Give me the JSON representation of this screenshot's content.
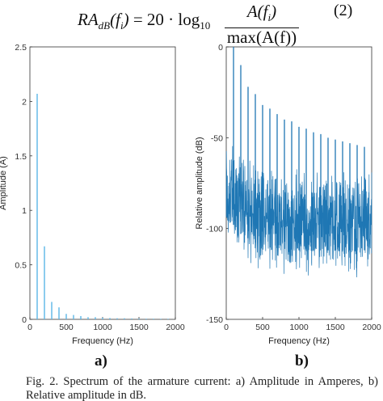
{
  "formula": {
    "lhs_main": "RA",
    "lhs_sub": "dB",
    "lhs_arg": "(f",
    "lhs_arg_sub": "i",
    "lhs_close": ")",
    "eq": "= 20 · log",
    "log_sub": "10",
    "numerator_main": "A(f",
    "numerator_sub": "i",
    "numerator_close": ")",
    "denominator": "max(A(f))",
    "number": "(2)"
  },
  "panel_labels": {
    "a": "a)",
    "b": "b)"
  },
  "caption": "Fig. 2.   Spectrum of the armature current: a) Amplitude in Amperes, b) Relative amplitude in dB.",
  "chart_data": [
    {
      "type": "bar",
      "xlabel": "Frequency (Hz)",
      "ylabel": "Amplitude (A)",
      "xlim": [
        0,
        2000
      ],
      "ylim": [
        0,
        2.5
      ],
      "xticks": [
        "0",
        "500",
        "1000",
        "1500",
        "2000"
      ],
      "yticks": [
        "0",
        "0.5",
        "1",
        "1.5",
        "2",
        "2.5"
      ],
      "color": "#5bb6e6",
      "x": [
        100,
        200,
        300,
        400,
        500,
        600,
        700,
        800,
        900,
        1000,
        1100,
        1200,
        1300,
        1400,
        1500,
        1600,
        1700,
        1800,
        1900
      ],
      "values": [
        2.07,
        0.67,
        0.16,
        0.11,
        0.05,
        0.04,
        0.03,
        0.02,
        0.02,
        0.015,
        0.012,
        0.01,
        0.01,
        0.008,
        0.007,
        0.006,
        0.006,
        0.005,
        0.005
      ],
      "grid": false
    },
    {
      "type": "line",
      "xlabel": "Frequency (Hz)",
      "ylabel": "Relative amplitude (dB)",
      "xlim": [
        0,
        2000
      ],
      "ylim": [
        -150,
        0
      ],
      "xticks": [
        "0",
        "500",
        "1000",
        "1500",
        "2000"
      ],
      "yticks": [
        "0",
        "-50",
        "-100",
        "-150"
      ],
      "color": "#1f77b4",
      "harmonics_x": [
        100,
        200,
        300,
        400,
        500,
        600,
        700,
        800,
        900,
        1000,
        1100,
        1200,
        1300,
        1400,
        1500,
        1600,
        1700,
        1800,
        1900
      ],
      "harmonics_db": [
        0,
        -10,
        -22,
        -26,
        -32,
        -34,
        -37,
        -40,
        -41,
        -44,
        -45,
        -47,
        -48,
        -50,
        -51,
        -52,
        -53,
        -54,
        -55
      ],
      "noise_floor_db": [
        [
          0,
          -78
        ],
        [
          200,
          -88
        ],
        [
          500,
          -95
        ],
        [
          1000,
          -97
        ],
        [
          2000,
          -97
        ]
      ],
      "noise_spread_db": 22,
      "grid": false
    }
  ]
}
